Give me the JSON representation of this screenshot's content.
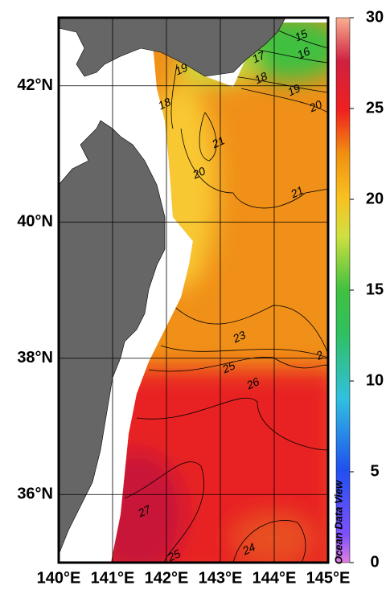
{
  "map": {
    "lon_ticks": [
      {
        "value": 140,
        "label": "140°E"
      },
      {
        "value": 141,
        "label": "141°E"
      },
      {
        "value": 142,
        "label": "142°E"
      },
      {
        "value": 143,
        "label": "143°E"
      },
      {
        "value": 144,
        "label": "144°E"
      },
      {
        "value": 145,
        "label": "145°E"
      }
    ],
    "lat_ticks": [
      {
        "value": 36,
        "label": "36°N"
      },
      {
        "value": 38,
        "label": "38°N"
      },
      {
        "value": 40,
        "label": "40°N"
      },
      {
        "value": 42,
        "label": "42°N"
      }
    ],
    "lon_range": [
      140,
      145
    ],
    "lat_range": [
      35,
      43
    ],
    "colorbar": {
      "range": [
        0,
        30
      ],
      "ticks": [
        0,
        5,
        10,
        15,
        20,
        25,
        30
      ]
    },
    "contour_labels": [
      15,
      16,
      17,
      18,
      19,
      20,
      19,
      18,
      21,
      20,
      21,
      23,
      2,
      25,
      26,
      27,
      24,
      25
    ],
    "watermark": "Ocean Data View"
  }
}
